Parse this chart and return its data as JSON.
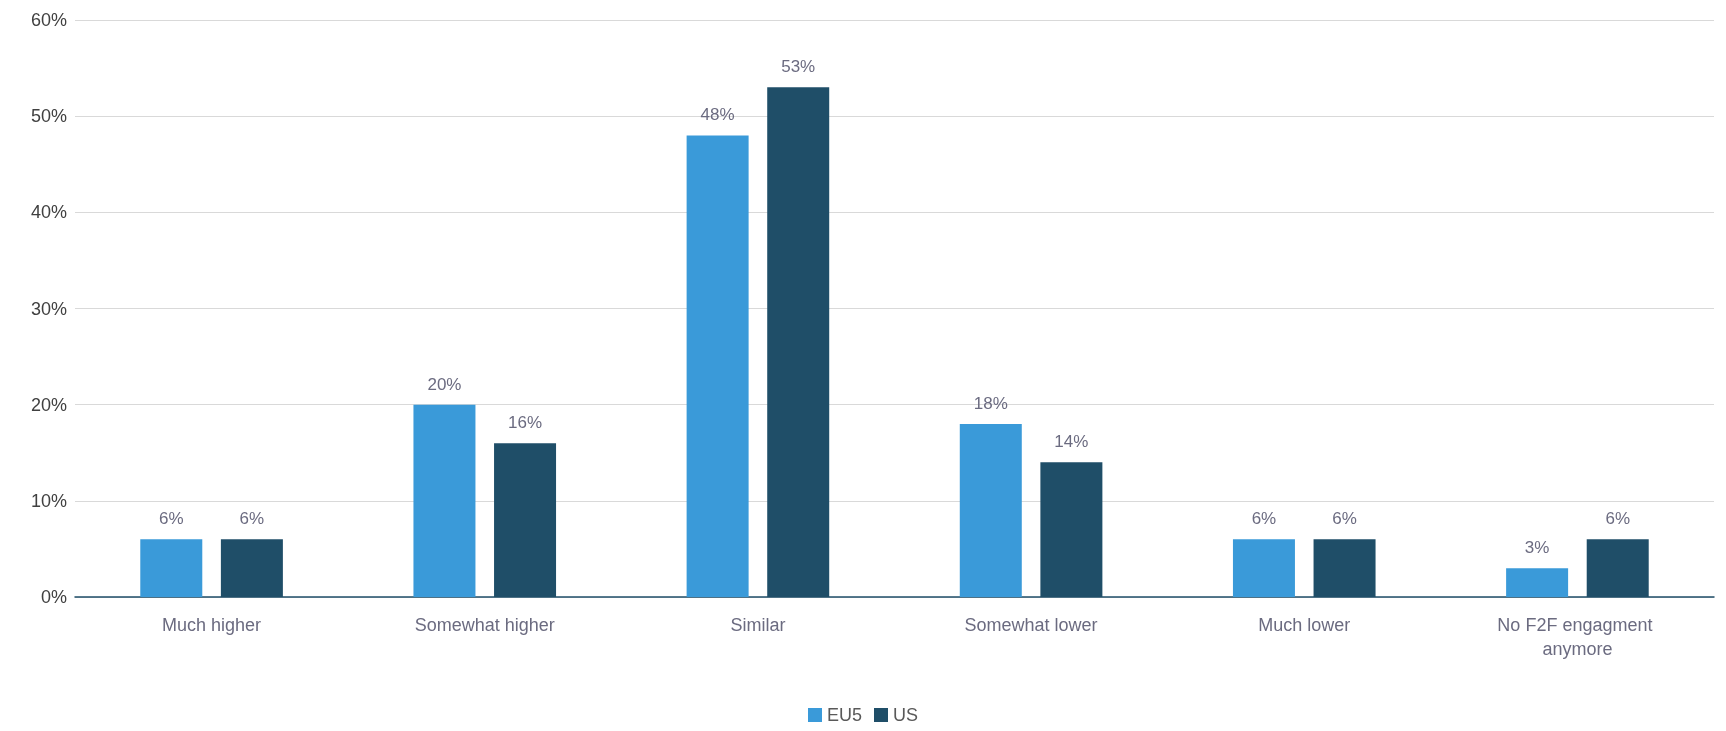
{
  "chart_data": {
    "type": "bar",
    "categories": [
      "Much higher",
      "Somewhat higher",
      "Similar",
      "Somewhat lower",
      "Much lower",
      "No F2F engagment anymore"
    ],
    "series": [
      {
        "name": "EU5",
        "color": "#3a9ad9",
        "values": [
          6,
          20,
          48,
          18,
          6,
          3
        ],
        "value_labels": [
          "6%",
          "20%",
          "48%",
          "18%",
          "6%",
          "3%"
        ]
      },
      {
        "name": "US",
        "color": "#1f4e68",
        "values": [
          6,
          16,
          53,
          14,
          6,
          6
        ],
        "value_labels": [
          "6%",
          "16%",
          "53%",
          "14%",
          "6%",
          "6%"
        ]
      }
    ],
    "ylim": [
      0,
      60
    ],
    "yticks": [
      {
        "value": 0,
        "label": "0%"
      },
      {
        "value": 10,
        "label": "10%"
      },
      {
        "value": 20,
        "label": "20%"
      },
      {
        "value": 30,
        "label": "30%"
      },
      {
        "value": 40,
        "label": "40%"
      },
      {
        "value": 50,
        "label": "50%"
      },
      {
        "value": 60,
        "label": "60%"
      }
    ],
    "grid": "y",
    "legend": "bottom"
  }
}
